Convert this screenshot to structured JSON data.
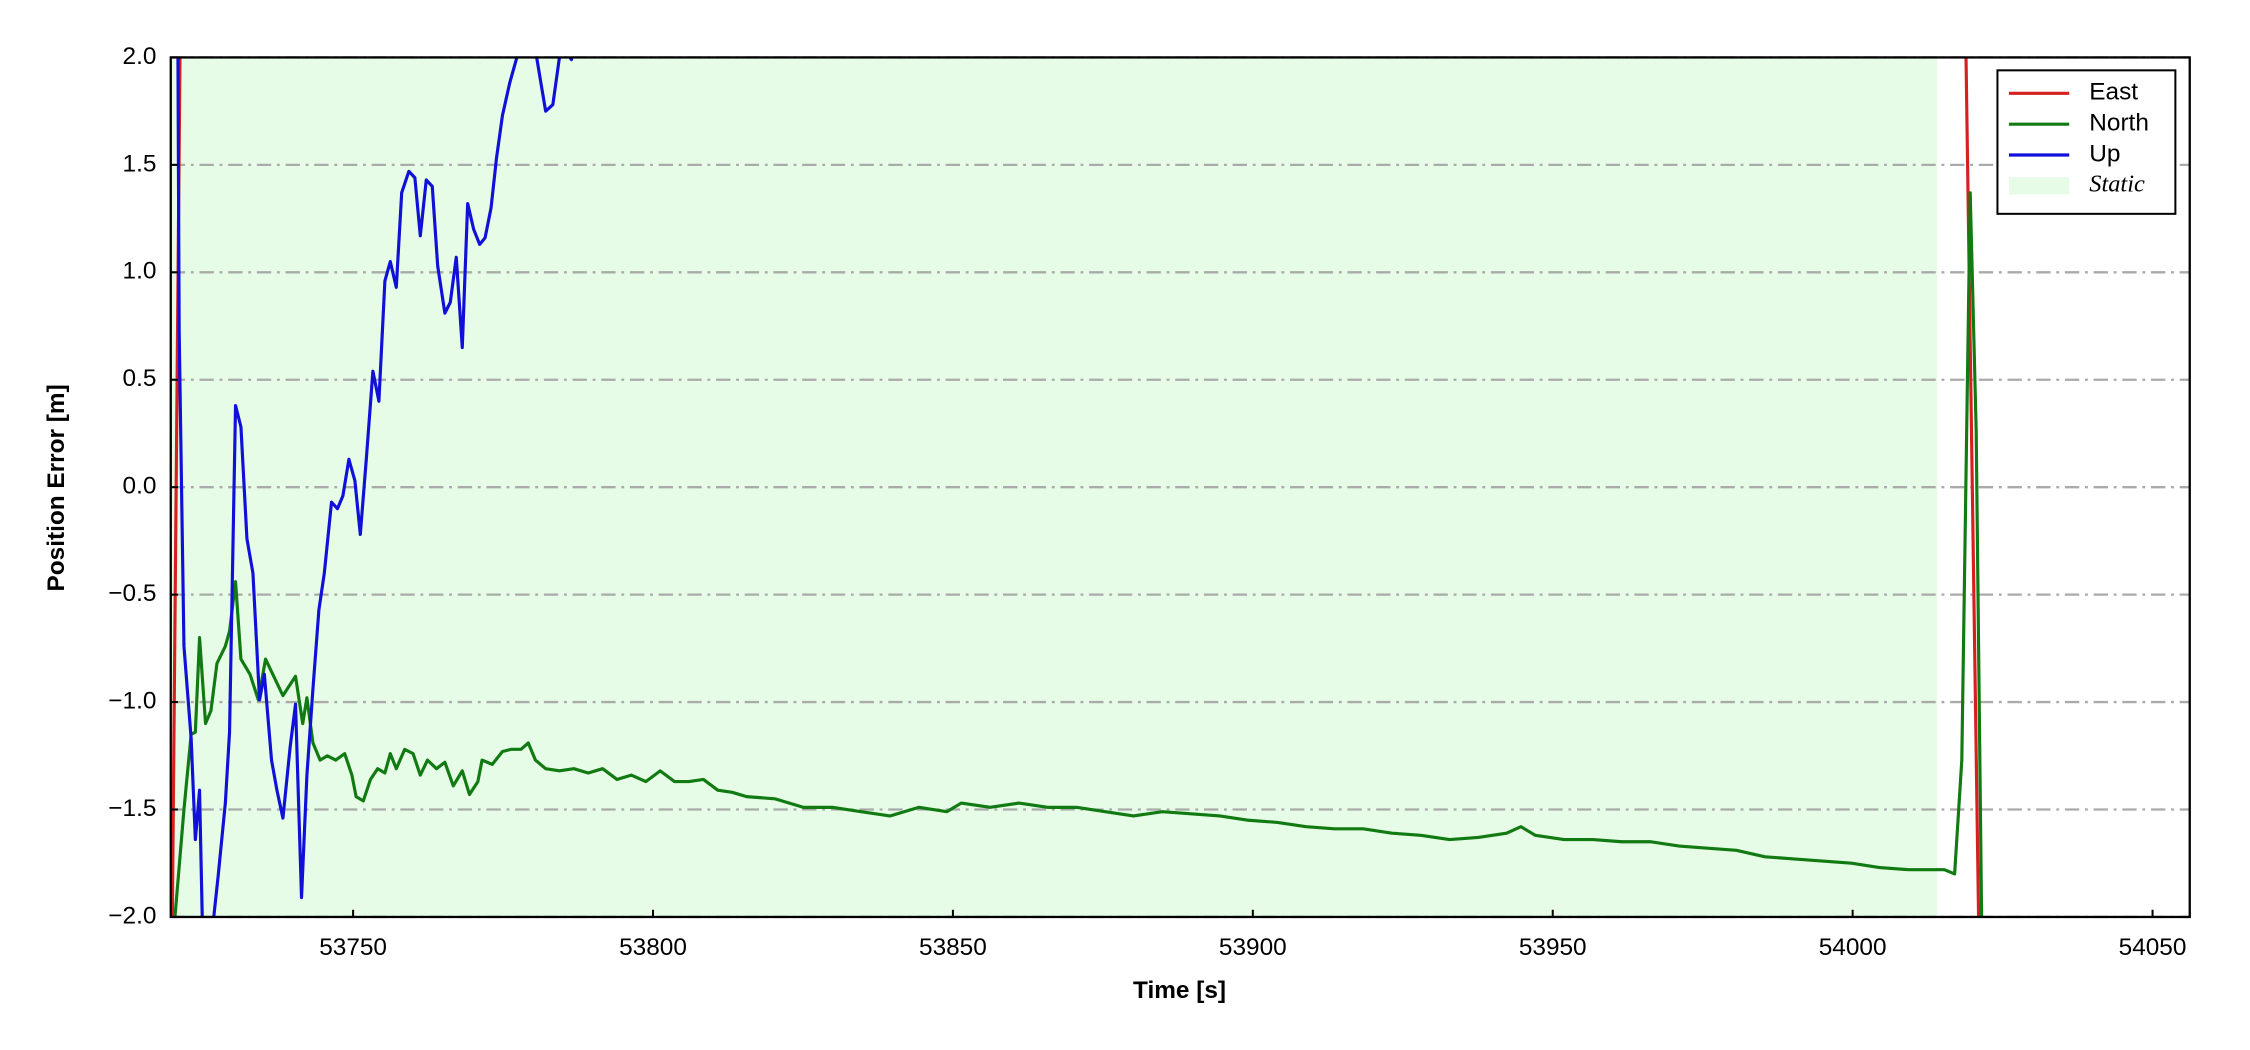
{
  "chart_data": {
    "type": "line",
    "xlabel": "Time [s]",
    "ylabel": "Position Error [m]",
    "xlim": [
      53719.6,
      54056.2
    ],
    "ylim": [
      -2.0,
      2.0
    ],
    "xticks": [
      53750,
      53800,
      53850,
      53900,
      53950,
      54000,
      54050
    ],
    "yticks": [
      {
        "value": -2.0,
        "label": "−2.0"
      },
      {
        "value": -1.5,
        "label": "−1.5"
      },
      {
        "value": -1.0,
        "label": "−1.0"
      },
      {
        "value": -0.5,
        "label": "−0.5"
      },
      {
        "value": 0.0,
        "label": "0.0"
      },
      0.5,
      {
        "value": 1.0,
        "label": "1.0"
      },
      1.5,
      {
        "value": 2.0,
        "label": "2.0"
      }
    ],
    "grid": true,
    "legend": "upper right",
    "spans": [
      {
        "label": "Static",
        "start": 53719.6,
        "end": 54014.1,
        "color": "#e6fce6"
      }
    ],
    "series": [
      {
        "name": "East",
        "color": "#d62020",
        "x": [
          53719.8,
          53721.2,
          54018.8,
          54021.1
        ],
        "values": [
          -2.2,
          2.2,
          2.2,
          -2.2
        ]
      },
      {
        "name": "North",
        "color": "#127a12",
        "x": [
          53720.3,
          53721.8,
          53723.0,
          53723.7,
          53724.4,
          53725.4,
          53726.3,
          53727.3,
          53728.7,
          53729.4,
          53730.4,
          53731.3,
          53732.8,
          53734.2,
          53735.4,
          53736.6,
          53738.3,
          53740.4,
          53741.6,
          53742.3,
          53743.3,
          53744.5,
          53745.7,
          53747.1,
          53748.6,
          53749.8,
          53750.5,
          53751.7,
          53752.9,
          53754.1,
          53755.3,
          53756.2,
          53757.2,
          53758.6,
          53760.0,
          53761.2,
          53762.4,
          53763.9,
          53765.3,
          53766.7,
          53768.2,
          53769.4,
          53770.8,
          53771.5,
          53773.2,
          53774.9,
          53776.3,
          53778.0,
          53779.2,
          53780.4,
          53782.1,
          53784.4,
          53786.8,
          53789.2,
          53791.6,
          53794.0,
          53796.4,
          53798.8,
          53801.2,
          53803.6,
          53806.0,
          53808.4,
          53810.8,
          53813.2,
          53815.6,
          53820.3,
          53825.1,
          53829.9,
          53834.7,
          53839.5,
          53844.3,
          53849.0,
          53851.4,
          53856.2,
          53861.0,
          53865.8,
          53870.6,
          53875.4,
          53880.1,
          53884.9,
          53889.7,
          53894.5,
          53899.3,
          53904.1,
          53908.9,
          53913.6,
          53918.4,
          53923.2,
          53928.0,
          53932.8,
          53937.6,
          53942.3,
          53944.7,
          53947.1,
          53951.9,
          53956.7,
          53961.5,
          53966.3,
          53971.1,
          53975.8,
          53980.6,
          53985.4,
          53990.2,
          53995.0,
          53999.8,
          54004.5,
          54009.3,
          54015.3,
          54017.0,
          54018.2,
          54019.6,
          54020.6,
          54021.5
        ],
        "values": [
          -2.0,
          -1.5,
          -1.15,
          -1.14,
          -0.7,
          -1.1,
          -1.04,
          -0.82,
          -0.74,
          -0.67,
          -0.44,
          -0.8,
          -0.87,
          -0.99,
          -0.8,
          -0.87,
          -0.97,
          -0.88,
          -1.1,
          -0.98,
          -1.19,
          -1.27,
          -1.25,
          -1.27,
          -1.24,
          -1.34,
          -1.44,
          -1.46,
          -1.36,
          -1.31,
          -1.33,
          -1.24,
          -1.31,
          -1.22,
          -1.24,
          -1.34,
          -1.27,
          -1.31,
          -1.28,
          -1.39,
          -1.32,
          -1.43,
          -1.37,
          -1.27,
          -1.29,
          -1.23,
          -1.22,
          -1.22,
          -1.19,
          -1.27,
          -1.31,
          -1.32,
          -1.31,
          -1.33,
          -1.31,
          -1.36,
          -1.34,
          -1.37,
          -1.32,
          -1.37,
          -1.37,
          -1.36,
          -1.41,
          -1.42,
          -1.44,
          -1.45,
          -1.49,
          -1.49,
          -1.51,
          -1.53,
          -1.49,
          -1.51,
          -1.47,
          -1.49,
          -1.47,
          -1.49,
          -1.49,
          -1.51,
          -1.53,
          -1.51,
          -1.52,
          -1.53,
          -1.55,
          -1.56,
          -1.58,
          -1.59,
          -1.59,
          -1.61,
          -1.62,
          -1.64,
          -1.63,
          -1.61,
          -1.58,
          -1.62,
          -1.64,
          -1.64,
          -1.65,
          -1.65,
          -1.67,
          -1.68,
          -1.69,
          -1.72,
          -1.73,
          -1.74,
          -1.75,
          -1.77,
          -1.78,
          -1.78,
          -1.8,
          -1.27,
          1.37,
          0.26,
          -2.0
        ]
      },
      {
        "name": "Up",
        "color": "#1010d8",
        "x": [
          53720.8,
          53721.0,
          53721.8,
          53723.0,
          53723.7,
          53724.4,
          53725.0,
          53726.0,
          53727.5,
          53728.7,
          53729.4,
          53730.4,
          53731.3,
          53732.3,
          53733.3,
          53734.4,
          53735.2,
          53736.4,
          53737.3,
          53738.3,
          53739.5,
          53740.4,
          53741.4,
          53742.3,
          53743.3,
          53744.3,
          53745.2,
          53746.4,
          53747.4,
          53748.3,
          53749.3,
          53750.3,
          53751.2,
          53752.2,
          53753.3,
          53754.3,
          53755.3,
          53756.2,
          53757.2,
          53758.1,
          53759.3,
          53760.3,
          53761.2,
          53762.2,
          53763.2,
          53764.1,
          53765.3,
          53766.2,
          53767.2,
          53768.2,
          53769.1,
          53770.1,
          53771.1,
          53772.0,
          53773.0,
          53773.9,
          53774.9,
          53776.1,
          53777.3,
          53778.7,
          53780.6,
          53782.1,
          53783.3,
          53784.4,
          53785.4,
          53786.4,
          53787.3
        ],
        "values": [
          2.0,
          0.73,
          -0.74,
          -1.17,
          -1.64,
          -1.41,
          -2.2,
          -2.2,
          -1.81,
          -1.47,
          -1.14,
          0.38,
          0.28,
          -0.24,
          -0.4,
          -0.99,
          -0.87,
          -1.27,
          -1.41,
          -1.54,
          -1.21,
          -1.01,
          -1.91,
          -1.34,
          -0.94,
          -0.57,
          -0.4,
          -0.07,
          -0.1,
          -0.04,
          0.13,
          0.03,
          -0.22,
          0.13,
          0.54,
          0.4,
          0.96,
          1.05,
          0.93,
          1.37,
          1.47,
          1.44,
          1.17,
          1.43,
          1.4,
          1.03,
          0.81,
          0.86,
          1.07,
          0.65,
          1.32,
          1.2,
          1.13,
          1.16,
          1.3,
          1.53,
          1.73,
          1.88,
          2.0,
          2.07,
          2.0,
          1.75,
          1.78,
          2.0,
          2.03,
          1.99,
          2.13
        ]
      }
    ]
  }
}
